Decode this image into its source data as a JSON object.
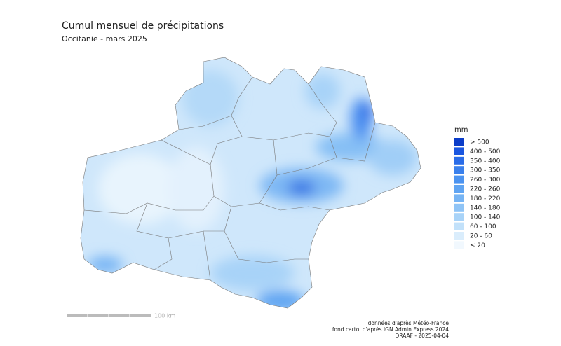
{
  "header": {
    "title": "Cumul mensuel de précipitations",
    "subtitle": "Occitanie - mars 2025"
  },
  "legend": {
    "unit": "mm",
    "items": [
      {
        "label": "> 500",
        "color": "#0b3cc8"
      },
      {
        "label": "400 - 500",
        "color": "#1a56e0"
      },
      {
        "label": "350 - 400",
        "color": "#2a6ce8"
      },
      {
        "label": "300 - 350",
        "color": "#3a80ec"
      },
      {
        "label": "260 - 300",
        "color": "#4b93f0"
      },
      {
        "label": "220 - 260",
        "color": "#5fa4f2"
      },
      {
        "label": "180 - 220",
        "color": "#76b4f4"
      },
      {
        "label": "140 - 180",
        "color": "#8fc4f6"
      },
      {
        "label": "100 - 140",
        "color": "#a8d3f8"
      },
      {
        "label": "60 - 100",
        "color": "#c2e1fa"
      },
      {
        "label": "20 - 60",
        "color": "#daedfc"
      },
      {
        "label": "≤ 20",
        "color": "#f1f8fe"
      }
    ]
  },
  "scale_bar": {
    "label": "100 km"
  },
  "credits": [
    "données d'après Météo-France",
    "fond carto. d'après IGN Admin Express 2024",
    "DRAAF - 2025-04-04"
  ]
}
